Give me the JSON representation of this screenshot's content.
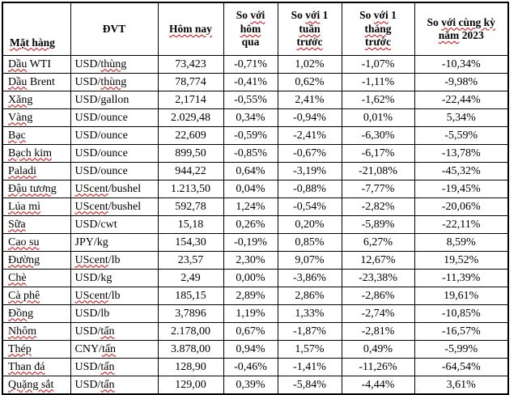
{
  "colors": {
    "background": "#ffffff",
    "border": "#000000",
    "text": "#000000",
    "spellcheck_underline": "#cc0000"
  },
  "table": {
    "columns": [
      {
        "id": "mat-hang",
        "header_lines": [
          [
            {
              "t": "Mặt hàng",
              "u": 1
            }
          ]
        ]
      },
      {
        "id": "dvt",
        "header_lines": [
          [
            {
              "t": "ĐVT"
            }
          ]
        ]
      },
      {
        "id": "hom-nay",
        "header_lines": [
          [
            {
              "t": "Hôm nay",
              "u": 1
            }
          ]
        ]
      },
      {
        "id": "vs-hom-qua",
        "header_lines": [
          [
            {
              "t": "So "
            },
            {
              "t": "với",
              "u": 1
            }
          ],
          [
            {
              "t": "hôm",
              "u": 1
            }
          ],
          [
            {
              "t": "qua"
            }
          ]
        ]
      },
      {
        "id": "vs-1-tuan",
        "header_lines": [
          [
            {
              "t": "So "
            },
            {
              "t": "với",
              "u": 1
            },
            {
              "t": " 1"
            }
          ],
          [
            {
              "t": "tuần",
              "u": 1
            }
          ],
          [
            {
              "t": "trước",
              "u": 1
            }
          ]
        ]
      },
      {
        "id": "vs-1-thang",
        "header_lines": [
          [
            {
              "t": "So "
            },
            {
              "t": "với",
              "u": 1
            },
            {
              "t": " 1"
            }
          ],
          [
            {
              "t": "tháng",
              "u": 1
            }
          ],
          [
            {
              "t": "trước",
              "u": 1
            }
          ]
        ]
      },
      {
        "id": "vs-2023",
        "header_lines": [
          [
            {
              "t": "So "
            },
            {
              "t": "với cùng kỳ",
              "u": 1
            }
          ],
          [
            {
              "t": "năm",
              "u": 1
            },
            {
              "t": " 2023"
            }
          ]
        ]
      }
    ],
    "rows": [
      {
        "name": [
          {
            "t": "Dầu",
            "u": 1
          },
          {
            "t": " WTI"
          }
        ],
        "unit": [
          {
            "t": "USD/"
          },
          {
            "t": "thùng",
            "u": 1
          }
        ],
        "values": [
          "73,423",
          "-0,71%",
          "1,02%",
          "-1,07%",
          "-10,34%"
        ]
      },
      {
        "name": [
          {
            "t": "Dầu",
            "u": 1
          },
          {
            "t": " Brent"
          }
        ],
        "unit": [
          {
            "t": "USD/"
          },
          {
            "t": "thùng",
            "u": 1
          }
        ],
        "values": [
          "78,774",
          "-0,41%",
          "0,62%",
          "-1,11%",
          "-9,98%"
        ]
      },
      {
        "name": [
          {
            "t": "Xăng",
            "u": 1
          }
        ],
        "unit": [
          {
            "t": "USD/gallon"
          }
        ],
        "values": [
          "2,1714",
          "-0,55%",
          "2,41%",
          "-1,62%",
          "-22,44%"
        ]
      },
      {
        "name": [
          {
            "t": "Vàng",
            "u": 1
          }
        ],
        "unit": [
          {
            "t": "USD/ounce"
          }
        ],
        "values": [
          "2.029,48",
          "0,34%",
          "-0,94%",
          "0,01%",
          "5,34%"
        ]
      },
      {
        "name": [
          {
            "t": "Bạc",
            "u": 1
          }
        ],
        "unit": [
          {
            "t": "USD/ounce"
          }
        ],
        "values": [
          "22,609",
          "-0,59%",
          "-2,41%",
          "-6,30%",
          "-5,59%"
        ]
      },
      {
        "name": [
          {
            "t": "Bạch kim",
            "u": 1
          }
        ],
        "unit": [
          {
            "t": "USD/ounce"
          }
        ],
        "values": [
          "899,50",
          "-0,85%",
          "-0,67%",
          "-6,17%",
          "-13,78%"
        ]
      },
      {
        "name": [
          {
            "t": "Paladi",
            "u": 1
          }
        ],
        "unit": [
          {
            "t": "USD/ounce"
          }
        ],
        "values": [
          "944,22",
          "0,64%",
          "-3,19%",
          "-21,08%",
          "-45,32%"
        ]
      },
      {
        "name": [
          {
            "t": "Đậu tương",
            "u": 1
          }
        ],
        "unit": [
          {
            "t": "UScent",
            "u": 1
          },
          {
            "t": "/bushel"
          }
        ],
        "values": [
          "1.213,50",
          "0,04%",
          "-0,88%",
          "-7,77%",
          "-19,45%"
        ]
      },
      {
        "name": [
          {
            "t": "Lúa mì",
            "u": 1
          }
        ],
        "unit": [
          {
            "t": "UScent",
            "u": 1
          },
          {
            "t": "/bushel"
          }
        ],
        "values": [
          "592,78",
          "1,24%",
          "-0,54%",
          "-2,82%",
          "-20,06%"
        ]
      },
      {
        "name": [
          {
            "t": "Sữa",
            "u": 1
          }
        ],
        "unit": [
          {
            "t": "USD/cwt"
          }
        ],
        "values": [
          "15,18",
          "0,26%",
          "0,20%",
          "-5,89%",
          "-22,11%"
        ]
      },
      {
        "name": [
          {
            "t": "Cao su",
            "u": 1
          }
        ],
        "unit": [
          {
            "t": "JPY/kg"
          }
        ],
        "values": [
          "154,30",
          "-0,19%",
          "0,85%",
          "6,27%",
          "8,59%"
        ]
      },
      {
        "name": [
          {
            "t": "Đường",
            "u": 1
          }
        ],
        "unit": [
          {
            "t": "UScent",
            "u": 1
          },
          {
            "t": "/lb"
          }
        ],
        "values": [
          "23,57",
          "2,30%",
          "9,07%",
          "12,67%",
          "19,52%"
        ]
      },
      {
        "name": [
          {
            "t": "Chè",
            "u": 1
          }
        ],
        "unit": [
          {
            "t": "USD/kg"
          }
        ],
        "values": [
          "2,49",
          "0,00%",
          "-3,86%",
          "-23,38%",
          "-11,39%"
        ]
      },
      {
        "name": [
          {
            "t": "Cà phê",
            "u": 1
          }
        ],
        "unit": [
          {
            "t": "UScent",
            "u": 1
          },
          {
            "t": "/lb"
          }
        ],
        "values": [
          "185,15",
          "2,89%",
          "2,86%",
          "-2,86%",
          "19,61%"
        ]
      },
      {
        "name": [
          {
            "t": "Đồng",
            "u": 1
          }
        ],
        "unit": [
          {
            "t": "USD/lb"
          }
        ],
        "values": [
          "3,7896",
          "1,19%",
          "1,33%",
          "-2,74%",
          "-10,85%"
        ]
      },
      {
        "name": [
          {
            "t": "Nhôm",
            "u": 1
          }
        ],
        "unit": [
          {
            "t": "USD/"
          },
          {
            "t": "tấn",
            "u": 1
          }
        ],
        "values": [
          "2.178,00",
          "0,67%",
          "-1,87%",
          "-2,81%",
          "-16,57%"
        ]
      },
      {
        "name": [
          {
            "t": "Thép",
            "u": 1
          }
        ],
        "unit": [
          {
            "t": "CNY/"
          },
          {
            "t": "tấn",
            "u": 1
          }
        ],
        "values": [
          "3.878,00",
          "0,94%",
          "1,57%",
          "0,49%",
          "-5,99%"
        ]
      },
      {
        "name": [
          {
            "t": "Than đá",
            "u": 1
          }
        ],
        "unit": [
          {
            "t": "USD/"
          },
          {
            "t": "tấn",
            "u": 1
          }
        ],
        "values": [
          "128,90",
          "-0,46%",
          "-1,41%",
          "-11,26%",
          "-64,54%"
        ]
      },
      {
        "name": [
          {
            "t": "Quặng sắt",
            "u": 1
          }
        ],
        "unit": [
          {
            "t": "USD/"
          },
          {
            "t": "tấn",
            "u": 1
          }
        ],
        "values": [
          "129,00",
          "0,39%",
          "-5,84%",
          "-4,44%",
          "3,61%"
        ]
      }
    ]
  }
}
